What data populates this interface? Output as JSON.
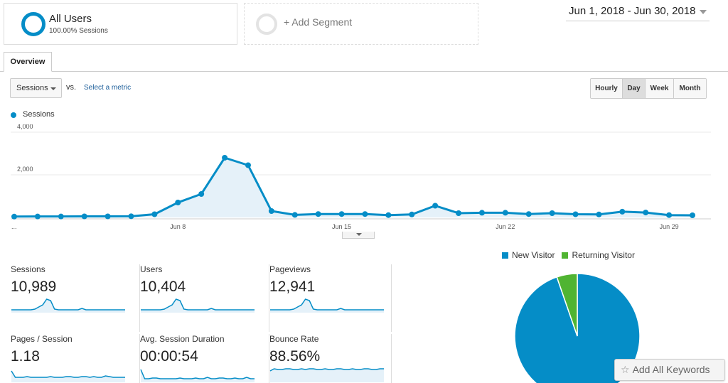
{
  "segments": {
    "all_users": {
      "title": "All Users",
      "subtitle": "100.00% Sessions"
    },
    "add_segment": "+ Add Segment"
  },
  "date_range": "Jun 1, 2018 - Jun 30, 2018",
  "tabs": {
    "overview": "Overview"
  },
  "controls": {
    "metric": "Sessions",
    "vs": "vs.",
    "select_metric": "Select a metric",
    "granularity": [
      "Hourly",
      "Day",
      "Week",
      "Month"
    ],
    "active_granularity": "Day"
  },
  "chart_legend": "Sessions",
  "chart_data": {
    "type": "area",
    "series": [
      {
        "name": "Sessions",
        "color": "#058dc7",
        "values": [
          40,
          45,
          45,
          50,
          50,
          55,
          150,
          700,
          1100,
          2800,
          2450,
          300,
          120,
          160,
          160,
          160,
          110,
          140,
          550,
          200,
          220,
          220,
          160,
          200,
          150,
          140,
          270,
          230,
          110,
          100
        ]
      }
    ],
    "x": [
      "Jun 1",
      "Jun 2",
      "Jun 3",
      "Jun 4",
      "Jun 5",
      "Jun 6",
      "Jun 7",
      "Jun 8",
      "Jun 9",
      "Jun 10",
      "Jun 11",
      "Jun 12",
      "Jun 13",
      "Jun 14",
      "Jun 15",
      "Jun 16",
      "Jun 17",
      "Jun 18",
      "Jun 19",
      "Jun 20",
      "Jun 21",
      "Jun 22",
      "Jun 23",
      "Jun 24",
      "Jun 25",
      "Jun 26",
      "Jun 27",
      "Jun 28",
      "Jun 29",
      "Jun 30"
    ],
    "y_ticks": [
      "4,000",
      "2,000"
    ],
    "y_tick_values": [
      4000,
      2000
    ],
    "ylim": [
      0,
      4000
    ],
    "x_tick_labels": [
      "...",
      "Jun 8",
      "Jun 15",
      "Jun 22",
      "Jun 29"
    ],
    "x_tick_indices": [
      0,
      7,
      14,
      21,
      28
    ],
    "grid": true
  },
  "metrics": [
    {
      "label": "Sessions",
      "value": "10,989",
      "spark": [
        2,
        2,
        2,
        2,
        2,
        2,
        3,
        6,
        9,
        17,
        15,
        3,
        2,
        2,
        2,
        2,
        2,
        2,
        4,
        2,
        2,
        2,
        2,
        2,
        2,
        2,
        2,
        2,
        2,
        2
      ]
    },
    {
      "label": "Users",
      "value": "10,404",
      "spark": [
        2,
        2,
        2,
        2,
        2,
        2,
        3,
        6,
        9,
        17,
        15,
        3,
        2,
        2,
        2,
        2,
        2,
        2,
        4,
        2,
        2,
        2,
        2,
        2,
        2,
        2,
        2,
        2,
        2,
        2
      ]
    },
    {
      "label": "Pageviews",
      "value": "12,941",
      "spark": [
        2,
        2,
        2,
        2,
        2,
        2,
        3,
        6,
        9,
        17,
        15,
        3,
        2,
        2,
        2,
        2,
        2,
        2,
        4,
        2,
        2,
        2,
        2,
        2,
        2,
        2,
        2,
        2,
        2,
        2
      ]
    },
    {
      "label": "Pages / Session",
      "value": "1.18",
      "spark": [
        14,
        5,
        5,
        5,
        6,
        5,
        5,
        5,
        5,
        5,
        6,
        5,
        5,
        5,
        6,
        6,
        5,
        5,
        6,
        6,
        5,
        6,
        5,
        5,
        7,
        6,
        5,
        5,
        5,
        5
      ]
    },
    {
      "label": "Avg. Session Duration",
      "value": "00:00:54",
      "spark": [
        16,
        3,
        3,
        4,
        4,
        3,
        3,
        3,
        3,
        3,
        4,
        3,
        3,
        3,
        4,
        3,
        3,
        5,
        3,
        3,
        4,
        4,
        3,
        3,
        4,
        3,
        3,
        5,
        3,
        3
      ]
    },
    {
      "label": "Bounce Rate",
      "value": "88.56%",
      "spark": [
        14,
        17,
        16,
        16,
        17,
        17,
        16,
        16,
        17,
        16,
        17,
        17,
        16,
        16,
        17,
        16,
        16,
        17,
        17,
        16,
        16,
        17,
        16,
        16,
        17,
        17,
        16,
        16,
        17,
        17
      ]
    }
  ],
  "pie": {
    "legend": [
      {
        "label": "New Visitor",
        "color": "#058dc7",
        "value": 94.7
      },
      {
        "label": "Returning Visitor",
        "color": "#50b432",
        "value": 5.3
      }
    ]
  },
  "add_keywords": "Add All Keywords",
  "icons": {
    "star": "star-icon"
  }
}
